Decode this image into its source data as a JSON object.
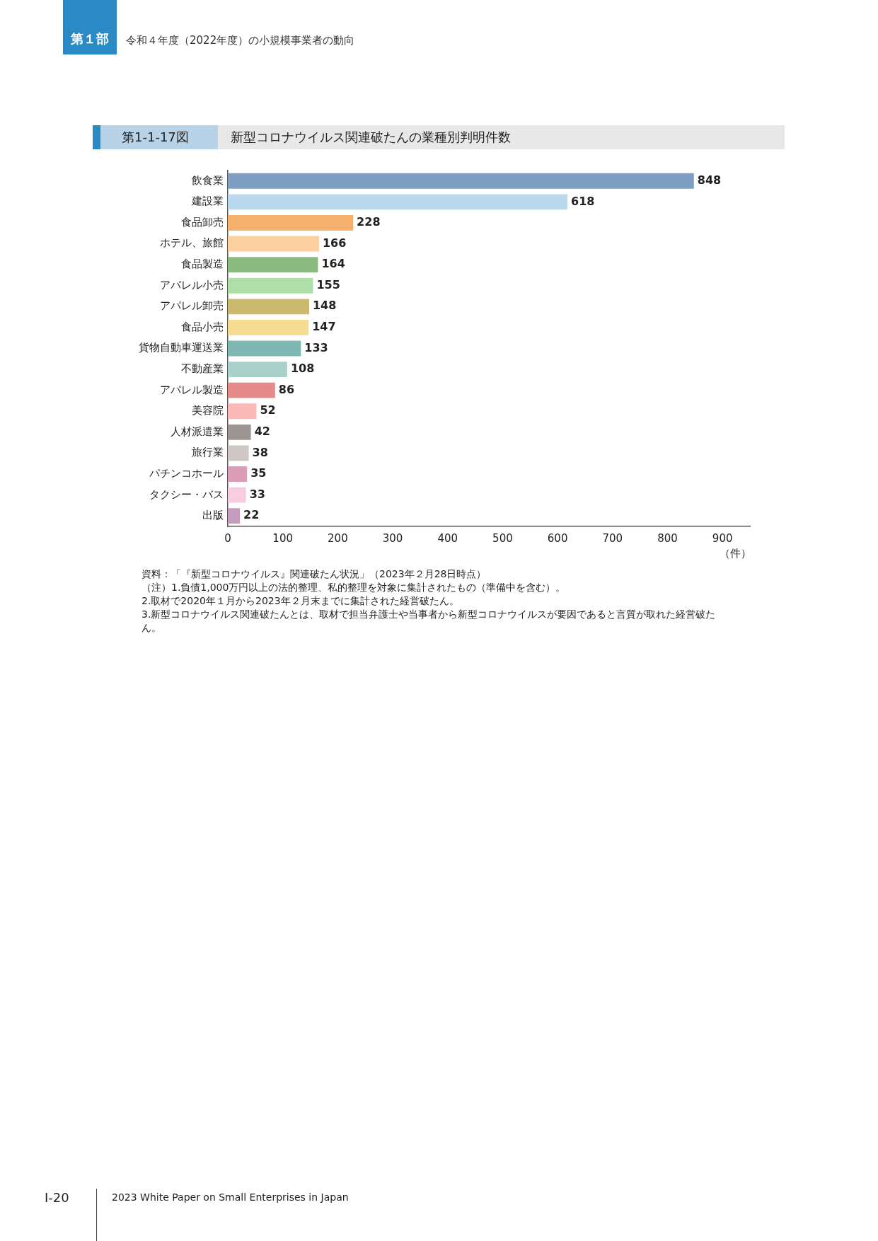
{
  "chart_data": {
    "type": "bar",
    "orientation": "horizontal",
    "title": "新型コロナウイルス関連破たんの業種別判明件数",
    "subtitle": "第1-1-17図",
    "xlabel": "（件）",
    "categories": [
      "飲食業",
      "建設業",
      "食品卸売",
      "ホテル、旅館",
      "食品製造",
      "アパレル小売",
      "アパレル卸売",
      "食品小売",
      "貨物自動車運送業",
      "不動産業",
      "アパレル製造",
      "美容院",
      "人材派遣業",
      "旅行業",
      "パチンコホール",
      "タクシー・バス",
      "出版"
    ],
    "values": [
      848,
      618,
      228,
      166,
      164,
      155,
      148,
      147,
      133,
      108,
      86,
      52,
      42,
      38,
      35,
      33,
      22
    ],
    "colors": [
      "#7f9fc2",
      "#b9d9ee",
      "#f5b06b",
      "#fdd0a2",
      "#8aba80",
      "#addfa6",
      "#cbb96e",
      "#f6dc90",
      "#7fb7b3",
      "#a9d1ca",
      "#e58a88",
      "#fbb8b6",
      "#9c9592",
      "#cfc7c5",
      "#de9db7",
      "#f8cde0",
      "#c59cbb"
    ],
    "xlim": [
      0,
      950
    ],
    "xticks": [
      0,
      100,
      200,
      300,
      400,
      500,
      600,
      700,
      800,
      900
    ],
    "grid": false,
    "data_labels": true,
    "annotations": [
      "第１部",
      "令和４年度（2022年度）の小規模事業者の動向",
      "資料：「『新型コロナウイルス』関連破たん状況」（2023年２月28日時点）",
      "（注）1.負債1,000万円以上の法的整理、私的整理を対象に集計されたもの（準備中を含む）。",
      "2.取材で2020年１月から2023年２月末までに集計された経営破たん。",
      "3.新型コロナウイルス関連破たんとは、取材で担当弁護士や当事者から新型コロナウイルスが要因であると言質が取れた経営破たん。",
      "Ⅰ-20",
      "2023 White Paper on Small Enterprises in Japan"
    ]
  }
}
